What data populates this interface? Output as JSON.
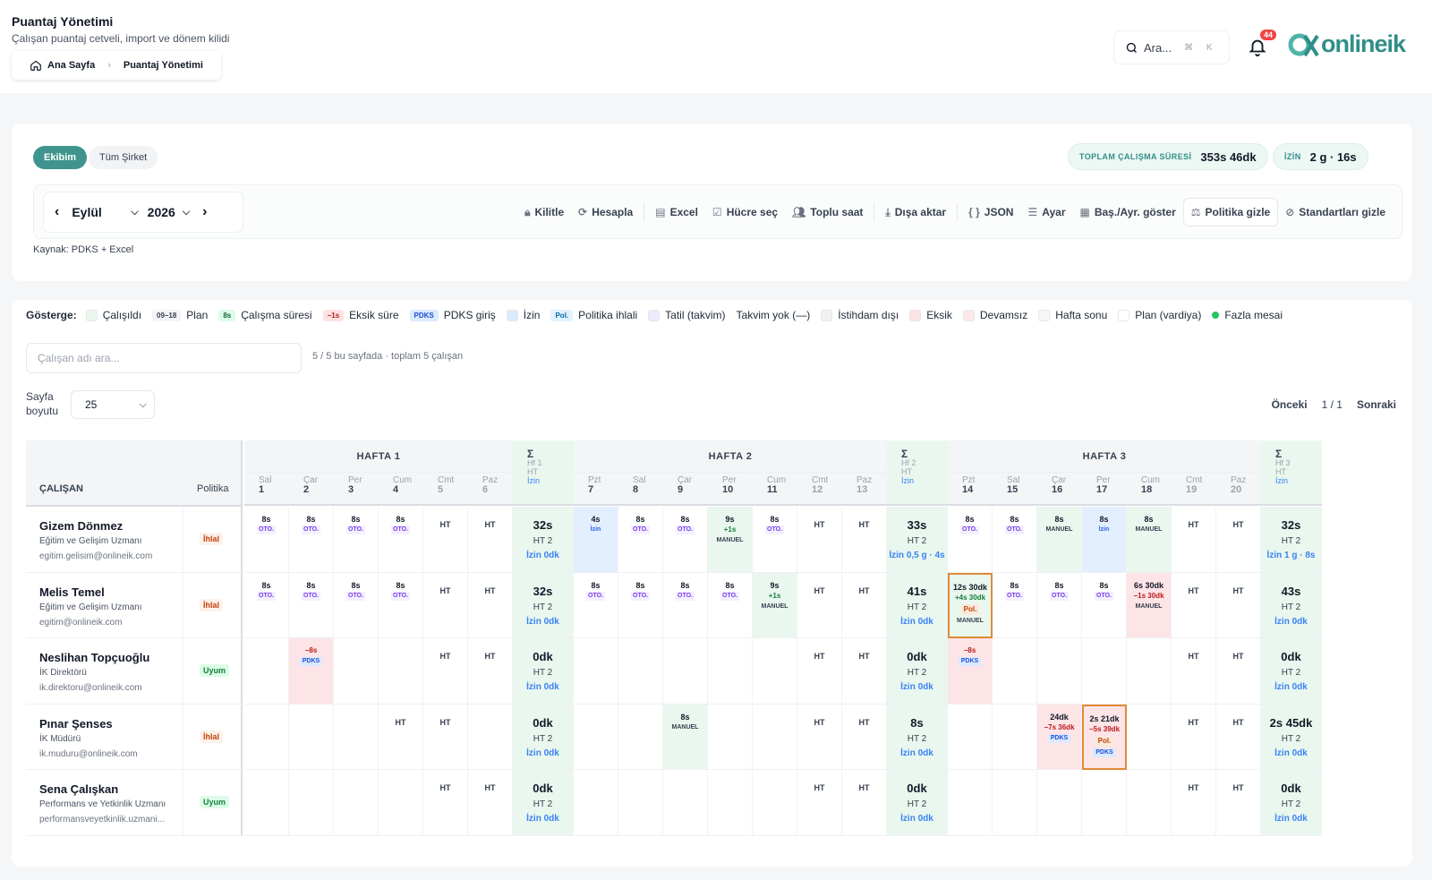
{
  "header": {
    "title": "Puantaj Yönetimi",
    "subtitle": "Çalışan puantaj cetveli, import ve dönem kilidi",
    "breadcrumb": {
      "home": "Ana Sayfa",
      "current": "Puantaj Yönetimi"
    },
    "search_placeholder": "Ara...",
    "search_kbd": "⌘ K",
    "notification_count": "44",
    "logo_text": "onlineik"
  },
  "summary": {
    "scope_tabs": [
      "Ekibim",
      "Tüm Şirket"
    ],
    "total_label": "TOPLAM ÇALIŞMA SÜRESİ",
    "total_value": "353s 46dk",
    "leave_label": "İZİN",
    "leave_value": "2 g · 16s"
  },
  "toolbar": {
    "month": "Eylül",
    "year": "2026",
    "actions": [
      "Kilitle",
      "Hesapla",
      "Excel",
      "Hücre seç",
      "Toplu saat",
      "Dışa aktar",
      "JSON",
      "Ayar",
      "Baş./Ayr. göster",
      "Politika gizle",
      "Standartları gizle"
    ],
    "source": "Kaynak: PDKS + Excel"
  },
  "legend": {
    "title": "Gösterge:",
    "items": [
      {
        "label": "Çalışıldı",
        "kind": "swatch",
        "color": "#e9f7ee"
      },
      {
        "label": "Plan",
        "kind": "chip",
        "chip": "09–18",
        "bg": "#f3f4f6",
        "fg": "#374151"
      },
      {
        "label": "Çalışma süresi",
        "kind": "chip",
        "chip": "8s",
        "bg": "#dcfce7",
        "fg": "#166534"
      },
      {
        "label": "Eksik süre",
        "kind": "chip",
        "chip": "−1s",
        "bg": "#fee2e2",
        "fg": "#b91c1c"
      },
      {
        "label": "PDKS giriş",
        "kind": "chip",
        "chip": "PDKS",
        "bg": "#dbeafe",
        "fg": "#1d4ed8"
      },
      {
        "label": "İzin",
        "kind": "swatch",
        "color": "#dbeafe"
      },
      {
        "label": "Politika ihlali",
        "kind": "chip",
        "chip": "Pol.",
        "bg": "#e0f2fe",
        "fg": "#0369a1"
      },
      {
        "label": "Tatil (takvim)",
        "kind": "swatch",
        "color": "#ede9fe"
      },
      {
        "label": "Takvim yok (—)",
        "kind": "none"
      },
      {
        "label": "İstihdam dışı",
        "kind": "swatch",
        "color": "#eef0f2"
      },
      {
        "label": "Eksik",
        "kind": "swatch",
        "color": "#fde2e2"
      },
      {
        "label": "Devamsız",
        "kind": "swatch",
        "color": "#fde8ec"
      },
      {
        "label": "Hafta sonu",
        "kind": "swatch",
        "color": "#f6f7f8"
      },
      {
        "label": "Plan (vardiya)",
        "kind": "swatch",
        "color": "#ffffff"
      },
      {
        "label": "Fazla mesai",
        "kind": "dot",
        "color": "#22c55e"
      }
    ]
  },
  "filters": {
    "search_placeholder": "Çalışan adı ara...",
    "count_text": "5 / 5 bu sayfada · toplam 5 çalışan",
    "page_size_label": "Sayfa boyutu",
    "page_size": "25",
    "prev": "Önceki",
    "page": "1 / 1",
    "next": "Sonraki"
  },
  "table": {
    "col_employee": "ÇALIŞAN",
    "col_policy": "Politika",
    "weeks": [
      {
        "label": "HAFTA 1",
        "sum_label": "Hf 1",
        "days": [
          {
            "d": "Sal",
            "n": "1"
          },
          {
            "d": "Çar",
            "n": "2"
          },
          {
            "d": "Per",
            "n": "3"
          },
          {
            "d": "Cum",
            "n": "4"
          },
          {
            "d": "Cmt",
            "n": "5"
          },
          {
            "d": "Paz",
            "n": "6"
          }
        ]
      },
      {
        "label": "HAFTA 2",
        "sum_label": "Hf 2",
        "days": [
          {
            "d": "Pzt",
            "n": "7"
          },
          {
            "d": "Sal",
            "n": "8"
          },
          {
            "d": "Çar",
            "n": "9"
          },
          {
            "d": "Per",
            "n": "10"
          },
          {
            "d": "Cum",
            "n": "11"
          },
          {
            "d": "Cmt",
            "n": "12"
          },
          {
            "d": "Paz",
            "n": "13"
          }
        ]
      },
      {
        "label": "HAFTA 3",
        "sum_label": "Hf 3",
        "days": [
          {
            "d": "Pzt",
            "n": "14"
          },
          {
            "d": "Sal",
            "n": "15"
          },
          {
            "d": "Çar",
            "n": "16"
          },
          {
            "d": "Per",
            "n": "17"
          },
          {
            "d": "Cum",
            "n": "18"
          },
          {
            "d": "Cmt",
            "n": "19"
          },
          {
            "d": "Paz",
            "n": "20"
          }
        ]
      }
    ],
    "sum_symbol": "Σ",
    "sum_ht": "HT",
    "sum_izin": "İzin",
    "rows": [
      {
        "name": "Gizem Dönmez",
        "role": "Eğitim ve Gelişim Uzmanı",
        "email": "egitim.gelisim@onlineik.com",
        "policy": "İhlal",
        "cells": [
          {
            "v": "8s",
            "s": "OTO."
          },
          {
            "v": "8s",
            "s": "OTO."
          },
          {
            "v": "8s",
            "s": "OTO."
          },
          {
            "v": "8s",
            "s": "OTO."
          },
          {
            "ht": "HT"
          },
          {
            "ht": "HT"
          },
          {
            "sum": "32s",
            "ht": "HT 2",
            "iz": "İzin 0dk"
          },
          {
            "v": "4s",
            "s": "İzin",
            "bg": "izin"
          },
          {
            "v": "8s",
            "s": "OTO."
          },
          {
            "v": "8s",
            "s": "OTO."
          },
          {
            "v": "9s",
            "v2": "+1s",
            "s": "MANUEL",
            "bg": "work"
          },
          {
            "v": "8s",
            "s": "OTO."
          },
          {
            "ht": "HT"
          },
          {
            "ht": "HT"
          },
          {
            "sum": "33s",
            "ht": "HT 2",
            "iz": "İzin 0,5 g · 4s"
          },
          {
            "v": "8s",
            "s": "OTO."
          },
          {
            "v": "8s",
            "s": "OTO."
          },
          {
            "v": "8s",
            "s": "MANUEL",
            "bg": "work"
          },
          {
            "v": "8s",
            "s": "İzin",
            "bg": "izin"
          },
          {
            "v": "8s",
            "s": "MANUEL",
            "bg": "work"
          },
          {
            "ht": "HT"
          },
          {
            "ht": "HT"
          },
          {
            "sum": "32s",
            "ht": "HT 2",
            "iz": "İzin 1 g · 8s"
          }
        ]
      },
      {
        "name": "Melis Temel",
        "role": "Eğitim ve Gelişim Uzmanı",
        "email": "egitim@onlineik.com",
        "policy": "İhlal",
        "cells": [
          {
            "v": "8s",
            "s": "OTO."
          },
          {
            "v": "8s",
            "s": "OTO."
          },
          {
            "v": "8s",
            "s": "OTO."
          },
          {
            "v": "8s",
            "s": "OTO."
          },
          {
            "ht": "HT"
          },
          {
            "ht": "HT"
          },
          {
            "sum": "32s",
            "ht": "HT 2",
            "iz": "İzin 0dk"
          },
          {
            "v": "8s",
            "s": "OTO."
          },
          {
            "v": "8s",
            "s": "OTO."
          },
          {
            "v": "8s",
            "s": "OTO."
          },
          {
            "v": "8s",
            "s": "OTO."
          },
          {
            "v": "9s",
            "v2": "+1s",
            "s": "MANUEL",
            "bg": "work"
          },
          {
            "ht": "HT"
          },
          {
            "ht": "HT"
          },
          {
            "sum": "41s",
            "ht": "HT 2",
            "iz": "İzin 0dk"
          },
          {
            "v": "12s 30dk",
            "v2": "+4s 30dk",
            "pol": "Pol.",
            "s": "MANUEL",
            "bg": "warn"
          },
          {
            "v": "8s",
            "s": "OTO."
          },
          {
            "v": "8s",
            "s": "OTO."
          },
          {
            "v": "8s",
            "s": "OTO."
          },
          {
            "v": "6s 30dk",
            "v2n": "−1s 30dk",
            "s": "MANUEL",
            "bg": "miss"
          },
          {
            "ht": "HT"
          },
          {
            "ht": "HT"
          },
          {
            "sum": "43s",
            "ht": "HT 2",
            "iz": "İzin 0dk"
          }
        ]
      },
      {
        "name": "Neslihan Topçuoğlu",
        "role": "İK Direktörü",
        "email": "ik.direktoru@onlineik.com",
        "policy": "Uyum",
        "cells": [
          {},
          {
            "v2n": "−8s",
            "s": "PDKS",
            "bg": "miss"
          },
          {},
          {},
          {
            "ht": "HT"
          },
          {
            "ht": "HT"
          },
          {
            "sum": "0dk",
            "ht": "HT 2",
            "iz": "İzin 0dk"
          },
          {},
          {},
          {},
          {},
          {},
          {
            "ht": "HT"
          },
          {
            "ht": "HT"
          },
          {
            "sum": "0dk",
            "ht": "HT 2",
            "iz": "İzin 0dk"
          },
          {
            "v2n": "−8s",
            "s": "PDKS",
            "bg": "miss"
          },
          {},
          {},
          {},
          {},
          {
            "ht": "HT"
          },
          {
            "ht": "HT"
          },
          {
            "sum": "0dk",
            "ht": "HT 2",
            "iz": "İzin 0dk"
          }
        ]
      },
      {
        "name": "Pınar Şenses",
        "role": "İK Müdürü",
        "email": "ik.muduru@onlineik.com",
        "policy": "İhlal",
        "cells": [
          {},
          {},
          {},
          {
            "ht": "HT"
          },
          {
            "ht": "HT"
          },
          {},
          {
            "sum": "0dk",
            "ht": "HT 2",
            "iz": "İzin 0dk"
          },
          {},
          {},
          {
            "v": "8s",
            "s": "MANUEL",
            "bg": "work"
          },
          {},
          {},
          {
            "ht": "HT"
          },
          {
            "ht": "HT"
          },
          {
            "sum": "8s",
            "ht": "HT 2",
            "iz": "İzin 0dk"
          },
          {},
          {},
          {
            "v": "24dk",
            "v2n": "−7s 36dk",
            "s": "PDKS",
            "bg": "miss"
          },
          {
            "v": "2s 21dk",
            "v2n": "−5s 39dk",
            "pol": "Pol.",
            "s": "PDKS",
            "bg": "warn"
          },
          {},
          {
            "ht": "HT"
          },
          {
            "ht": "HT"
          },
          {
            "sum": "2s 45dk",
            "ht": "HT 2",
            "iz": "İzin 0dk"
          }
        ]
      },
      {
        "name": "Sena Çalışkan",
        "role": "Performans ve Yetkinlik Uzmanı",
        "email": "performansveyetkinlik.uzmani...",
        "policy": "Uyum",
        "cells": [
          {},
          {},
          {},
          {},
          {
            "ht": "HT"
          },
          {
            "ht": "HT"
          },
          {
            "sum": "0dk",
            "ht": "HT 2",
            "iz": "İzin 0dk"
          },
          {},
          {},
          {},
          {},
          {},
          {
            "ht": "HT"
          },
          {
            "ht": "HT"
          },
          {
            "sum": "0dk",
            "ht": "HT 2",
            "iz": "İzin 0dk"
          },
          {},
          {},
          {},
          {},
          {},
          {
            "ht": "HT"
          },
          {
            "ht": "HT"
          },
          {
            "sum": "0dk",
            "ht": "HT 2",
            "iz": "İzin 0dk"
          }
        ]
      }
    ]
  },
  "colors": {
    "accent": "#3f958d",
    "work": "#e9f7ee",
    "izin": "#e3efff",
    "miss": "#fde4e6",
    "warn_border": "#e08a3a",
    "violation": "#c2410c",
    "comply": "#15803d"
  }
}
